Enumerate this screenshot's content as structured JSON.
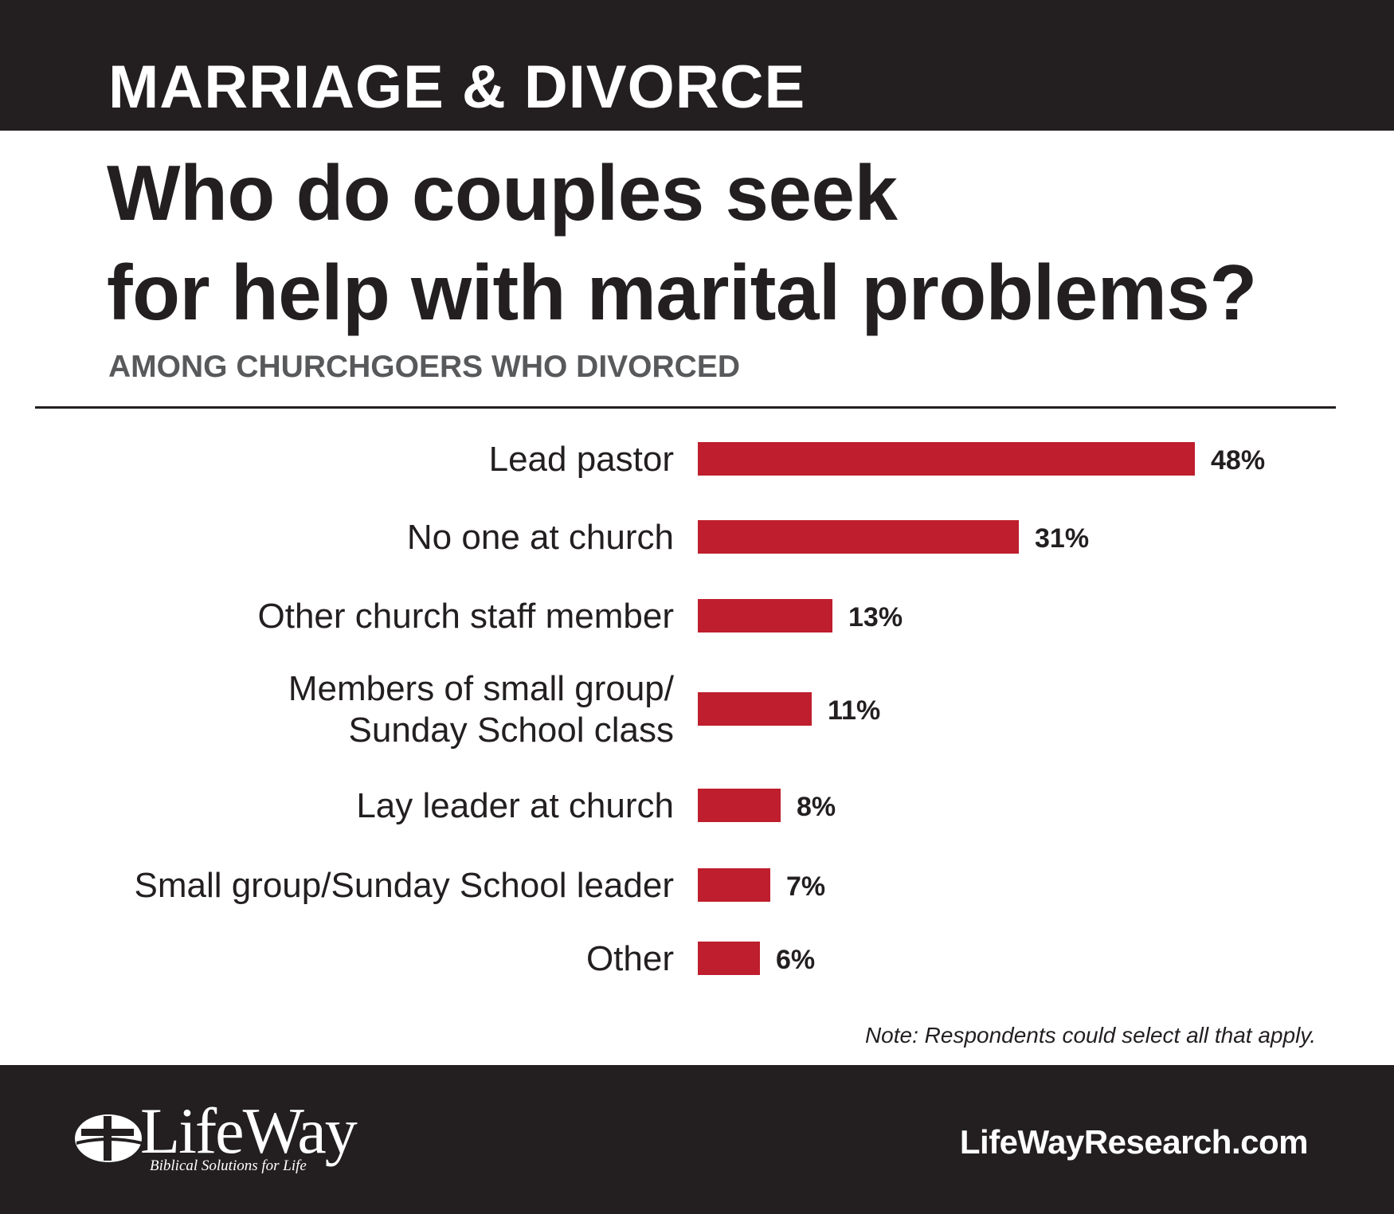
{
  "header": {
    "category": "MARRIAGE & DIVORCE"
  },
  "title_lines": [
    "Who do couples seek",
    "for help with marital problems?"
  ],
  "subtitle": "AMONG CHURCHGOERS WHO DIVORCED",
  "note": "Note: Respondents could select all that apply.",
  "footer": {
    "logo_text": "LifeWay",
    "logo_tagline": "Biblical Solutions for Life",
    "website": "LifeWayResearch.com"
  },
  "colors": {
    "bar": "#be1e2d",
    "band": "#231f20",
    "text": "#231f20",
    "subtitle": "#58595b"
  },
  "chart_data": {
    "type": "bar",
    "orientation": "horizontal",
    "title": "Who do couples seek for help with marital problems?",
    "subtitle": "AMONG CHURCHGOERS WHO DIVORCED",
    "categories": [
      [
        "Lead pastor"
      ],
      [
        "No one at church"
      ],
      [
        "Other church staff member"
      ],
      [
        "Members of small group/",
        "Sunday School class"
      ],
      [
        "Lay leader at church"
      ],
      [
        "Small group/Sunday School leader"
      ],
      [
        "Other"
      ]
    ],
    "values": [
      48,
      31,
      13,
      11,
      8,
      7,
      6
    ],
    "value_labels": [
      "48%",
      "31%",
      "13%",
      "11%",
      "8%",
      "7%",
      "6%"
    ],
    "unit": "%",
    "xlim": [
      0,
      48
    ],
    "grid": false,
    "legend": "none"
  }
}
